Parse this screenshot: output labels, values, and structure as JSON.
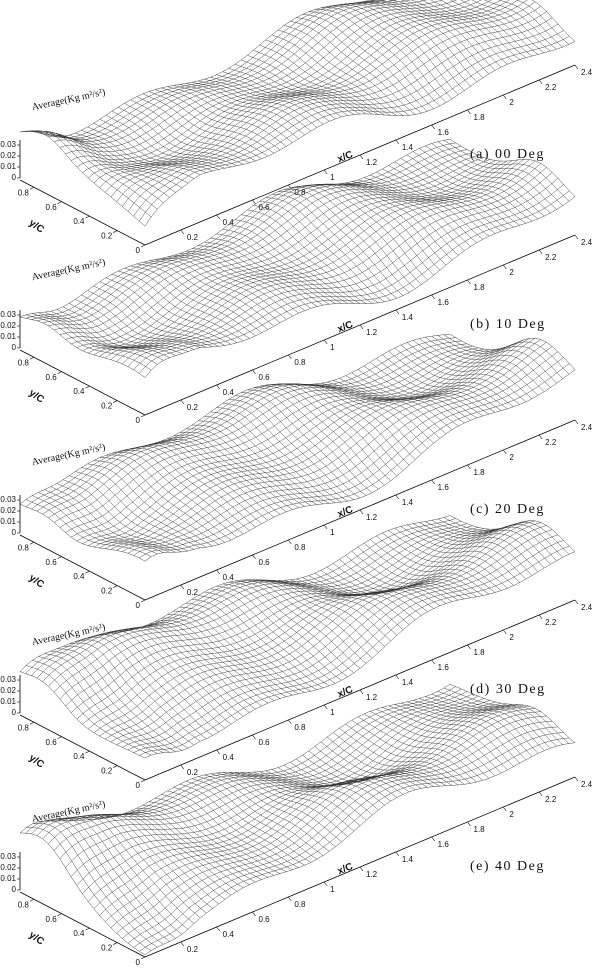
{
  "panels": [
    {
      "label": "(a) 00 Deg",
      "z_title": "Average(Kg m²/s²)",
      "z_ticks": [
        0.03,
        0.02,
        0.01,
        0
      ],
      "y_title": "y/C",
      "y_ticks": [
        0.8,
        0.6,
        0.4,
        0.2,
        0
      ],
      "x_title": "x/C",
      "x_ticks": [
        0.2,
        0.4,
        0.6,
        0.8,
        1,
        1.2,
        1.4,
        1.6,
        1.8,
        2,
        2.2,
        2.4
      ]
    },
    {
      "label": "(b) 10 Deg",
      "z_title": "Average(Kg m²/s²)",
      "z_ticks": [
        0.03,
        0.02,
        0.01,
        0
      ],
      "y_title": "y/C",
      "y_ticks": [
        0.8,
        0.6,
        0.4,
        0.2,
        0
      ],
      "x_title": "x/C",
      "x_ticks": [
        0.2,
        0.4,
        0.6,
        0.8,
        1,
        1.2,
        1.4,
        1.6,
        1.8,
        2,
        2.2,
        2.4
      ]
    },
    {
      "label": "(c) 20 Deg",
      "z_title": "Average(Kg m²/s²)",
      "z_ticks": [
        0.03,
        0.02,
        0.01,
        0
      ],
      "y_title": "y/C",
      "y_ticks": [
        0.8,
        0.6,
        0.4,
        0.2,
        0
      ],
      "x_title": "x/C",
      "x_ticks": [
        0.2,
        0.4,
        0.6,
        0.8,
        1,
        1.2,
        1.4,
        1.6,
        1.8,
        2,
        2.2,
        2.4
      ]
    },
    {
      "label": "(d) 30 Deg",
      "z_title": "Average(Kg m²/s²)",
      "z_ticks": [
        0.03,
        0.02,
        0.01,
        0
      ],
      "y_title": "y/C",
      "y_ticks": [
        0.8,
        0.6,
        0.4,
        0.2,
        0
      ],
      "x_title": "x/C",
      "x_ticks": [
        0.2,
        0.4,
        0.6,
        0.8,
        1,
        1.2,
        1.4,
        1.6,
        1.8,
        2,
        2.2,
        2.4
      ]
    },
    {
      "label": "(e) 40 Deg",
      "z_title": "Average(Kg m²/s²)",
      "z_ticks": [
        0.03,
        0.02,
        0.01,
        0
      ],
      "y_title": "y/C",
      "y_ticks": [
        0.8,
        0.6,
        0.4,
        0.2,
        0
      ],
      "x_title": "x/C",
      "x_ticks": [
        0.2,
        0.4,
        0.6,
        0.8,
        1,
        1.2,
        1.4,
        1.6,
        1.8,
        2,
        2.2,
        2.4
      ]
    }
  ]
}
